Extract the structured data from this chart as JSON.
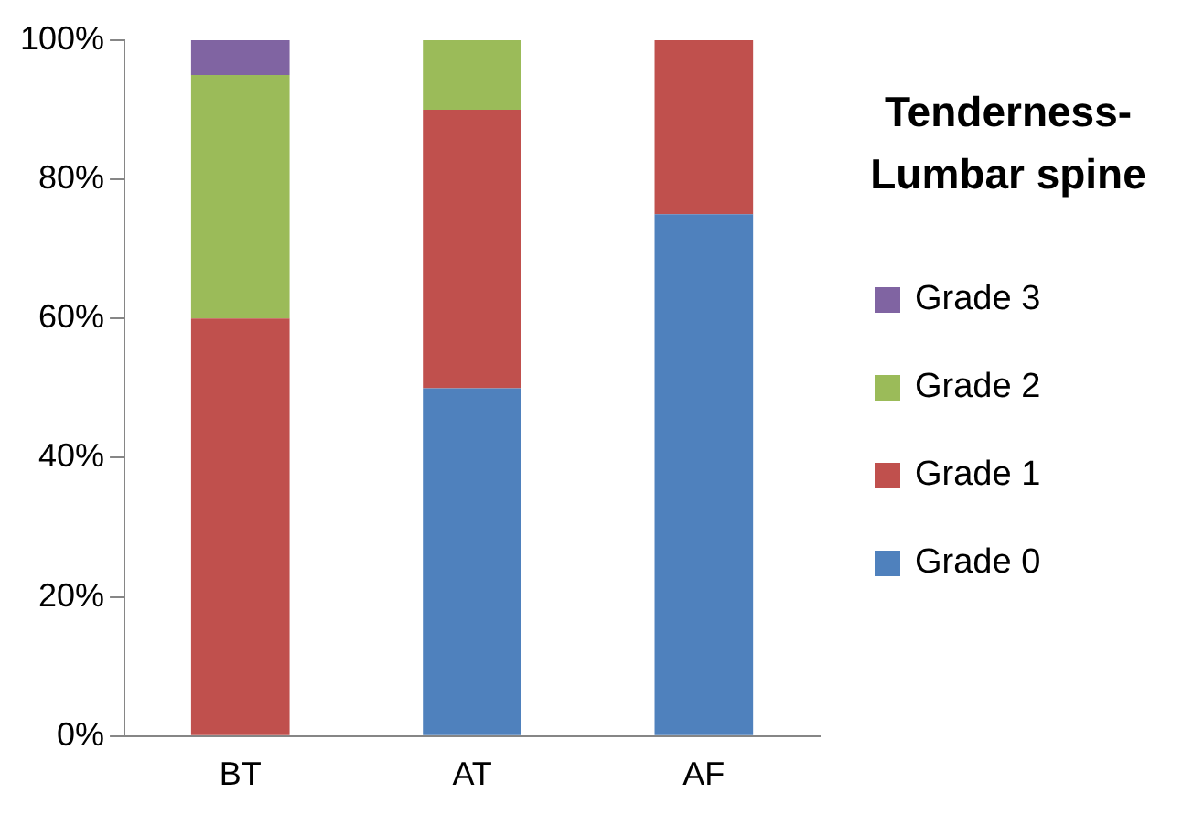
{
  "chart_data": {
    "type": "bar",
    "title": "Tenderness-Lumbar spine",
    "categories": [
      "BT",
      "AT",
      "AF"
    ],
    "stacked": true,
    "legend": "right",
    "grid": false,
    "ylim": [
      0,
      100
    ],
    "yticks": [
      {
        "value": 0,
        "label": "0%"
      },
      {
        "value": 20,
        "label": "20%"
      },
      {
        "value": 40,
        "label": "40%"
      },
      {
        "value": 60,
        "label": "60%"
      },
      {
        "value": 80,
        "label": "80%"
      },
      {
        "value": 100,
        "label": "100%"
      }
    ],
    "series": [
      {
        "name": "Grade 0",
        "color": "#4f81bd",
        "values": [
          0,
          50,
          75
        ]
      },
      {
        "name": "Grade 1",
        "color": "#c0504d",
        "values": [
          60,
          40,
          25
        ]
      },
      {
        "name": "Grade 2",
        "color": "#9bbb59",
        "values": [
          35,
          10,
          0
        ]
      },
      {
        "name": "Grade 3",
        "color": "#8064a2",
        "values": [
          5,
          0,
          0
        ]
      }
    ]
  }
}
